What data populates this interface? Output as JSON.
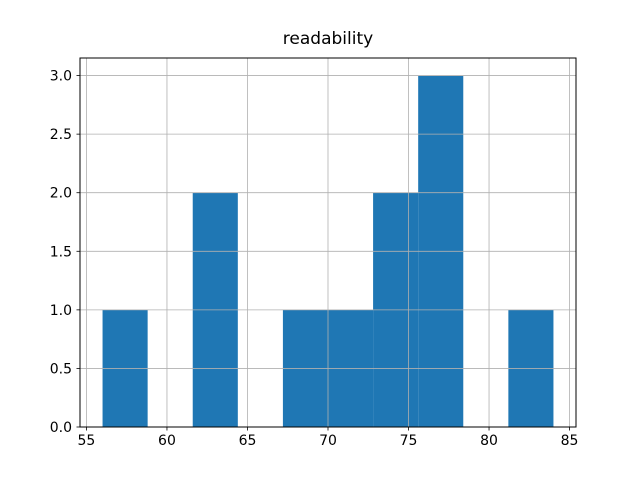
{
  "chart_data": {
    "type": "bar",
    "subtype": "histogram",
    "title": "readability",
    "xlabel": "",
    "ylabel": "",
    "bin_edges": [
      56.0,
      58.8,
      61.6,
      64.4,
      67.2,
      70.0,
      72.8,
      75.6,
      78.4,
      81.2,
      84.0
    ],
    "counts": [
      1,
      0,
      2,
      0,
      1,
      1,
      2,
      3,
      0,
      1
    ],
    "xlim": [
      54.6,
      85.4
    ],
    "ylim": [
      0,
      3.15
    ],
    "xticks": [
      55,
      60,
      65,
      70,
      75,
      80,
      85
    ],
    "yticks": [
      0.0,
      0.5,
      1.0,
      1.5,
      2.0,
      2.5,
      3.0
    ],
    "ytick_labels": [
      "0.0",
      "0.5",
      "1.0",
      "1.5",
      "2.0",
      "2.5",
      "3.0"
    ],
    "grid": true,
    "grid_above_bars": true,
    "legend": "none",
    "colors": {
      "bar": "#1f77b4",
      "grid": "#b0b0b0",
      "spine": "#000000",
      "background": "#ffffff",
      "text": "#000000"
    }
  }
}
